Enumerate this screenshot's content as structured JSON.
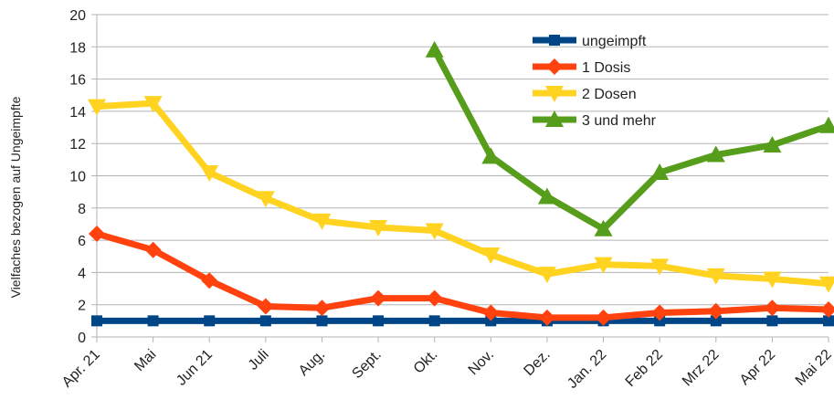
{
  "chart_data": {
    "type": "line",
    "title": "",
    "xlabel": "",
    "ylabel": "Vielfaches bezogen auf Ungeimpfte",
    "ylim": [
      0,
      20
    ],
    "yticks": [
      0,
      2,
      4,
      6,
      8,
      10,
      12,
      14,
      16,
      18,
      20
    ],
    "grid": "horizontal",
    "legend_position": "top-right",
    "categories": [
      "Apr. 21",
      "Mai",
      "Jun 21",
      "Juli",
      "Aug.",
      "Sept.",
      "Okt.",
      "Nov.",
      "Dez.",
      "Jan. 22",
      "Feb 22",
      "Mrz 22",
      "Apr 22",
      "Mai 22"
    ],
    "series": [
      {
        "name": "ungeimpft",
        "color": "#004586",
        "marker": "square",
        "values": [
          1,
          1,
          1,
          1,
          1,
          1,
          1,
          1,
          1,
          1,
          1,
          1,
          1,
          1
        ]
      },
      {
        "name": "1 Dosis",
        "color": "#ff420e",
        "marker": "diamond",
        "values": [
          6.4,
          5.4,
          3.5,
          1.9,
          1.8,
          2.4,
          2.4,
          1.5,
          1.2,
          1.2,
          1.5,
          1.6,
          1.8,
          1.7
        ]
      },
      {
        "name": "2 Dosen",
        "color": "#ffd320",
        "marker": "triangle-down",
        "values": [
          14.3,
          14.5,
          10.2,
          8.6,
          7.2,
          6.8,
          6.6,
          5.1,
          3.9,
          4.5,
          4.4,
          3.8,
          3.6,
          3.3
        ]
      },
      {
        "name": "3 und mehr",
        "color": "#579d1c",
        "marker": "triangle-up",
        "values": [
          null,
          null,
          null,
          null,
          null,
          null,
          17.8,
          11.2,
          8.7,
          6.7,
          10.2,
          11.3,
          11.9,
          13.1
        ]
      }
    ]
  }
}
